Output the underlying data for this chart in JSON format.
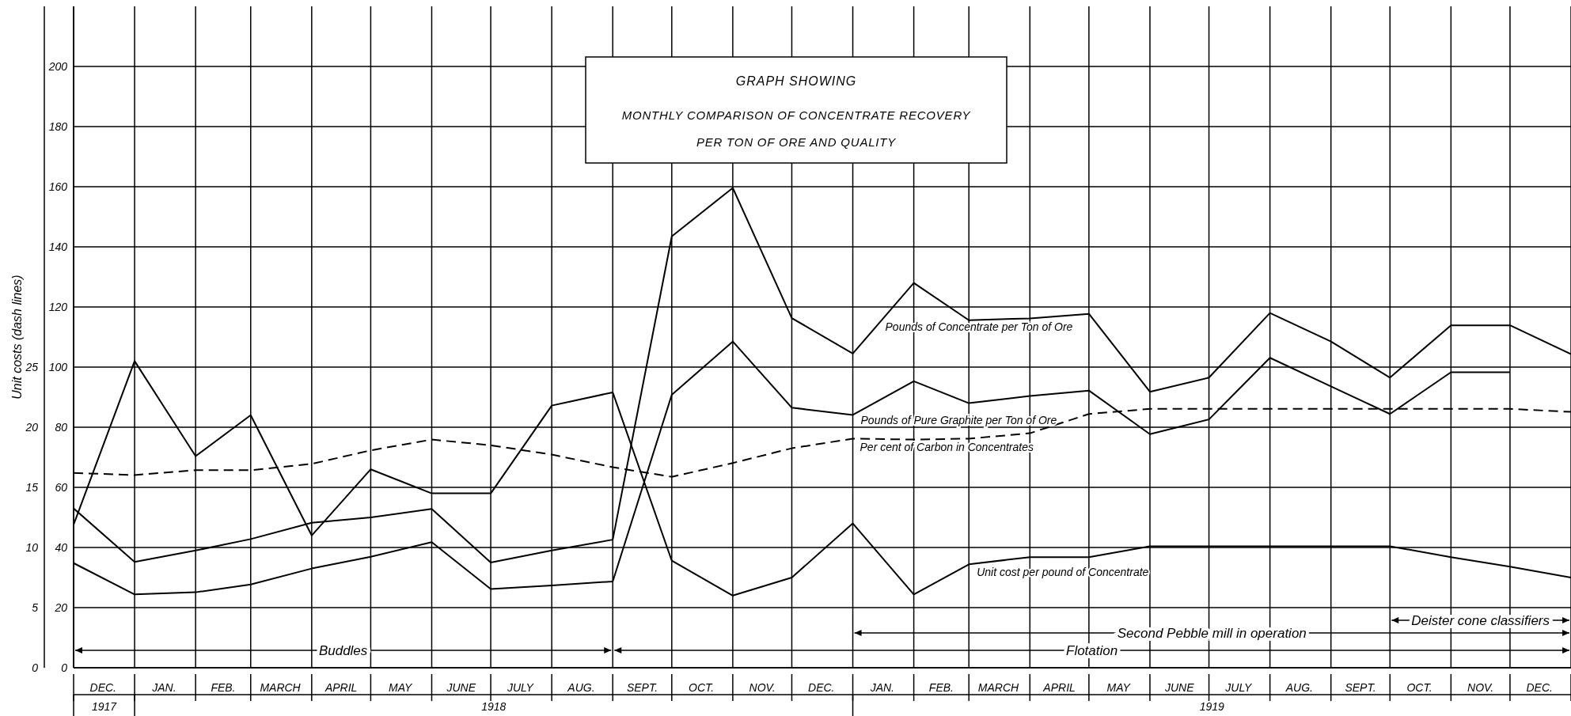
{
  "chart_data": {
    "type": "line",
    "title": "GRAPH SHOWING",
    "subtitle": "MONTHLY COMPARISON OF CONCENTRATE RECOVERY\nPER TON OF ORE AND QUALITY",
    "y2label": "Unit costs (dash lines)",
    "x": [
      "1917-12-01",
      "1918-01-01",
      "1918-02-01",
      "1918-03-01",
      "1918-04-01",
      "1918-05-01",
      "1918-06-01",
      "1918-07-01",
      "1918-08-01",
      "1918-09-01",
      "1918-10-01",
      "1918-11-01",
      "1918-12-01",
      "1919-01-01",
      "1919-02-01",
      "1919-03-01",
      "1919-04-01",
      "1919-05-01",
      "1919-06-01",
      "1919-07-01",
      "1919-08-01",
      "1919-09-01",
      "1919-10-01",
      "1919-11-01",
      "1919-12-01",
      "1920-01-01"
    ],
    "xlim": [
      "1917-12-01",
      "1920-01-01"
    ],
    "xticks": [
      {
        "value": "1917-12-01",
        "label": null
      },
      {
        "value": "1917-12-16",
        "label": "DEC."
      },
      {
        "value": "1918-01-01",
        "label": null
      },
      {
        "value": "1918-01-16",
        "label": "JAN."
      },
      {
        "value": "1918-02-01",
        "label": null
      },
      {
        "value": "1918-02-15",
        "label": "FEB."
      },
      {
        "value": "1918-03-01",
        "label": null
      },
      {
        "value": "1918-03-16",
        "label": "MARCH"
      },
      {
        "value": "1918-04-01",
        "label": null
      },
      {
        "value": "1918-04-16",
        "label": "APRIL"
      },
      {
        "value": "1918-05-01",
        "label": null
      },
      {
        "value": "1918-05-16",
        "label": "MAY"
      },
      {
        "value": "1918-06-01",
        "label": null
      },
      {
        "value": "1918-06-16",
        "label": "JUNE"
      },
      {
        "value": "1918-07-01",
        "label": null
      },
      {
        "value": "1918-07-16",
        "label": "JULY"
      },
      {
        "value": "1918-08-01",
        "label": null
      },
      {
        "value": "1918-08-16",
        "label": "AUG."
      },
      {
        "value": "1918-09-01",
        "label": null
      },
      {
        "value": "1918-09-16",
        "label": "SEPT."
      },
      {
        "value": "1918-10-01",
        "label": null
      },
      {
        "value": "1918-10-16",
        "label": "OCT."
      },
      {
        "value": "1918-11-01",
        "label": null
      },
      {
        "value": "1918-11-16",
        "label": "NOV."
      },
      {
        "value": "1918-12-01",
        "label": null
      },
      {
        "value": "1918-12-16",
        "label": "DEC."
      },
      {
        "value": "1919-01-01",
        "label": null
      },
      {
        "value": "1919-01-16",
        "label": "JAN."
      },
      {
        "value": "1919-02-01",
        "label": null
      },
      {
        "value": "1919-02-15",
        "label": "FEB."
      },
      {
        "value": "1919-03-01",
        "label": null
      },
      {
        "value": "1919-03-16",
        "label": "MARCH"
      },
      {
        "value": "1919-04-01",
        "label": null
      },
      {
        "value": "1919-04-16",
        "label": "APRIL"
      },
      {
        "value": "1919-05-01",
        "label": null
      },
      {
        "value": "1919-05-16",
        "label": "MAY"
      },
      {
        "value": "1919-06-01",
        "label": null
      },
      {
        "value": "1919-06-16",
        "label": "JUNE"
      },
      {
        "value": "1919-07-01",
        "label": null
      },
      {
        "value": "1919-07-16",
        "label": "JULY"
      },
      {
        "value": "1919-08-01",
        "label": null
      },
      {
        "value": "1919-08-16",
        "label": "AUG."
      },
      {
        "value": "1919-09-01",
        "label": null
      },
      {
        "value": "1919-09-16",
        "label": "SEPT."
      },
      {
        "value": "1919-10-01",
        "label": null
      },
      {
        "value": "1919-10-16",
        "label": "OCT."
      },
      {
        "value": "1919-11-01",
        "label": null
      },
      {
        "value": "1919-11-16",
        "label": "NOV."
      },
      {
        "value": "1919-12-01",
        "label": null
      },
      {
        "value": "1919-12-16",
        "label": "DEC."
      },
      {
        "value": "1920-01-01",
        "label": null
      }
    ],
    "ylim": [
      0,
      220
    ],
    "yticks": [
      0,
      20,
      40,
      60,
      80,
      100,
      120,
      140,
      160,
      180,
      200
    ],
    "y2lim": [
      0,
      55
    ],
    "y2ticks": [
      0,
      5,
      10,
      15,
      20,
      25
    ],
    "grid": true,
    "marker": "none",
    "series": [
      {
        "name": "Pounds of Concentrate per Ton of Ore",
        "color": "#000000",
        "line_style": "solid",
        "values": [
          53,
          35.2,
          39,
          42.8,
          48.2,
          50,
          52.8,
          35,
          39,
          42.6,
          143.5,
          159.6,
          116.3,
          104.5,
          128,
          115.6,
          116.2,
          117.7,
          91.8,
          96.5,
          118,
          108.5,
          96.5,
          113.9,
          113.9,
          104.3
        ]
      },
      {
        "name": "Pounds of Pure Graphite per Ton of Ore",
        "color": "#000000",
        "line_style": "solid",
        "values": [
          34.8,
          24.4,
          25.1,
          27.7,
          33,
          36.9,
          41.8,
          26.2,
          27.4,
          28.7,
          90.8,
          108.5,
          86.5,
          84.1,
          95.3,
          88,
          90.4,
          92.2,
          77.7,
          82.6,
          103.1,
          93.6,
          84.4,
          98.3,
          98.3,
          null
        ]
      },
      {
        "name": "Per cent of Carbon in Concentrates",
        "color": "#000000",
        "line_style": "dashed",
        "values": [
          64.8,
          64.1,
          65.7,
          65.7,
          67.8,
          72.3,
          75.9,
          74,
          70.9,
          66.7,
          63.5,
          68.1,
          73,
          76.2,
          75.9,
          76.2,
          78,
          84.4,
          86.1,
          86.1,
          86.1,
          86.1,
          86.1,
          86.1,
          86.1,
          85.1
        ]
      },
      {
        "name": "Unit cost per pound of Concentrate",
        "color": "#000000",
        "line_style": "solid",
        "axis": "y2",
        "values": [
          11.9,
          25.5,
          17.6,
          21,
          11,
          16.5,
          14.5,
          14.5,
          21.8,
          22.9,
          8.9,
          6,
          7.5,
          12,
          6.1,
          8.6,
          9.2,
          9.2,
          10.1,
          10.1,
          10.1,
          10.1,
          10.1,
          9.2,
          8.4,
          7.5
        ]
      }
    ],
    "annotations": [
      "1917",
      "1918",
      "1919",
      "Buddles",
      "Second Pebble mill in operation",
      "Flotation",
      "Deister cone classifiers"
    ]
  }
}
